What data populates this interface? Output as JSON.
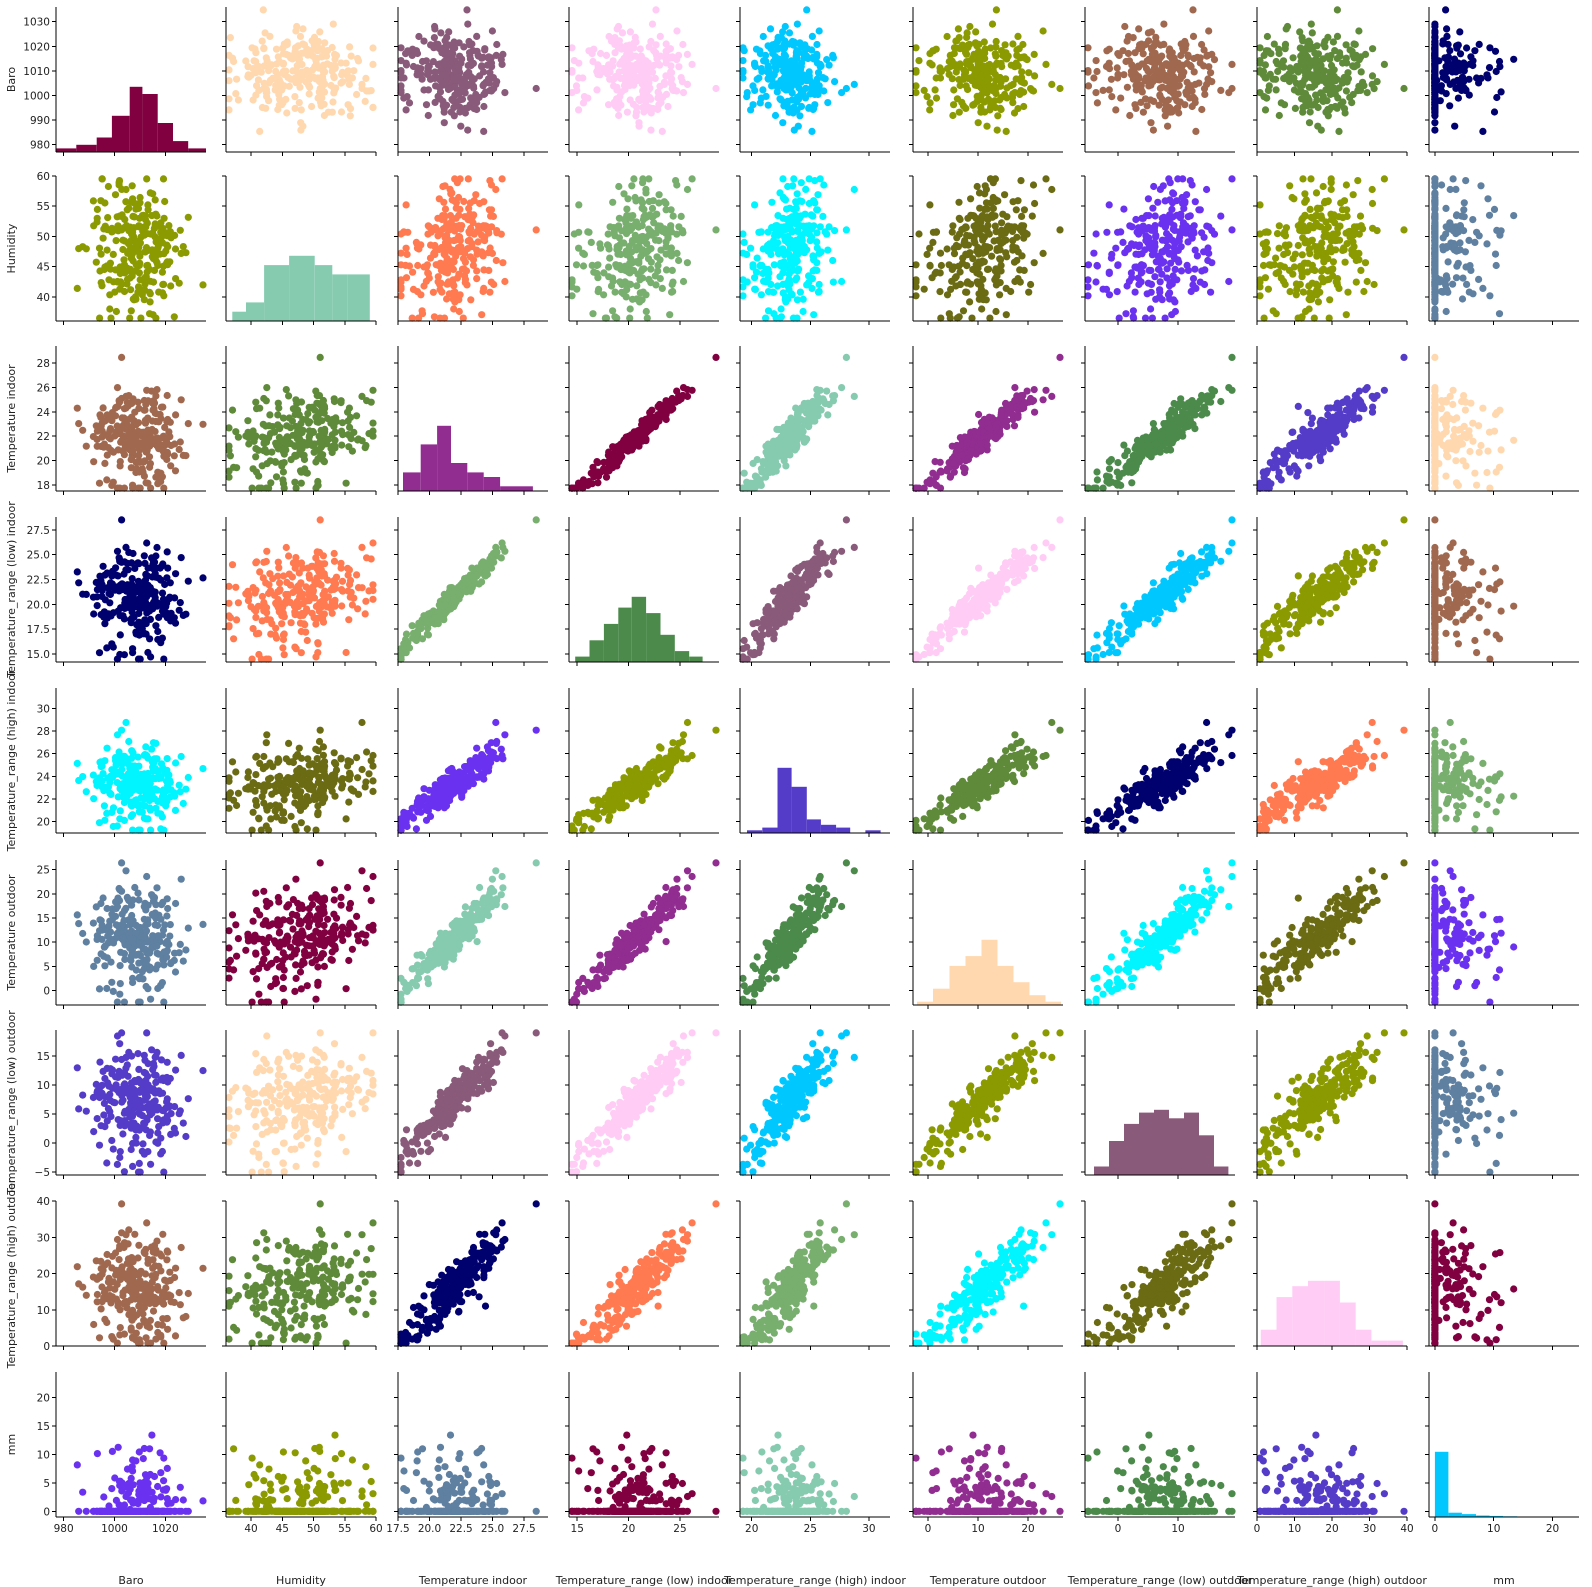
{
  "chart_data": {
    "type": "scatter",
    "title": "",
    "layout": "pairplot",
    "variables": [
      {
        "name": "Baro",
        "label": "Baro",
        "range": [
          977,
          1036
        ],
        "ticks": [
          980,
          1000,
          1020
        ],
        "ticks_y": [
          980,
          990,
          1000,
          1010,
          1020,
          1030
        ],
        "tick_labels_x": [
          "980",
          "1000",
          "1020"
        ],
        "tick_labels_y": [
          "980",
          "990",
          "1000",
          "1010",
          "1020",
          "1030"
        ]
      },
      {
        "name": "Humidity",
        "label": "Humidity",
        "range": [
          36,
          60
        ],
        "ticks": [
          40,
          45,
          50,
          55,
          60
        ],
        "ticks_y": [
          40,
          45,
          50,
          55,
          60
        ],
        "tick_labels_x": [
          "40",
          "45",
          "50",
          "55",
          "60"
        ],
        "tick_labels_y": [
          "40",
          "45",
          "50",
          "55",
          "60"
        ]
      },
      {
        "name": "Temperature indoor",
        "label": "Temperature indoor",
        "range": [
          17.5,
          29.4
        ],
        "ticks": [
          17.5,
          20,
          22.5,
          25,
          27.5
        ],
        "ticks_y": [
          18,
          20,
          22,
          24,
          26,
          28
        ],
        "tick_labels_x": [
          "17.5",
          "20.0",
          "22.5",
          "25.0",
          "27.5"
        ],
        "tick_labels_y": [
          "18",
          "20",
          "22",
          "24",
          "26",
          "28"
        ]
      },
      {
        "name": "Temperature_range (low) indoor",
        "label": "Temperature_range (low) indoor",
        "range": [
          14.2,
          28.8
        ],
        "ticks": [
          15,
          20,
          25
        ],
        "ticks_y": [
          15,
          17.5,
          20,
          22.5,
          25,
          27.5
        ],
        "tick_labels_x": [
          "15",
          "20",
          "25"
        ],
        "tick_labels_y": [
          "15.0",
          "17.5",
          "20.0",
          "22.5",
          "25.0",
          "27.5"
        ]
      },
      {
        "name": "Temperature_range (high) indoor",
        "label": "Temperature_range (high) indoor",
        "range": [
          19,
          31.8
        ],
        "ticks": [
          20,
          25,
          30
        ],
        "ticks_y": [
          20,
          22,
          24,
          26,
          28,
          30
        ],
        "tick_labels_x": [
          "20",
          "25",
          "30"
        ],
        "tick_labels_y": [
          "20",
          "22",
          "24",
          "26",
          "28",
          "30"
        ]
      },
      {
        "name": "Temperature outdoor",
        "label": "Temperature outdoor",
        "range": [
          -3,
          27
        ],
        "ticks": [
          0,
          10,
          20
        ],
        "ticks_y": [
          0,
          5,
          10,
          15,
          20,
          25
        ],
        "tick_labels_x": [
          "0",
          "10",
          "20"
        ],
        "tick_labels_y": [
          "0",
          "5",
          "10",
          "15",
          "20",
          "25"
        ]
      },
      {
        "name": "Temperature_range (low) outdoor",
        "label": "Temperature_range (low) outdoor",
        "range": [
          -5.5,
          19.5
        ],
        "ticks": [
          0,
          10
        ],
        "ticks_y": [
          -5,
          0,
          5,
          10,
          15
        ],
        "tick_labels_x": [
          "0",
          "10"
        ],
        "tick_labels_y": [
          "−5",
          "0",
          "5",
          "10",
          "15"
        ]
      },
      {
        "name": "Temperature_range (high) outdoor",
        "label": "Temperature_range (high) outdoor",
        "range": [
          0,
          40
        ],
        "ticks": [
          0,
          10,
          20,
          30,
          40
        ],
        "ticks_y": [
          0,
          10,
          20,
          30,
          40
        ],
        "tick_labels_x": [
          "0",
          "10",
          "20",
          "30",
          "40"
        ],
        "tick_labels_y": [
          "0",
          "10",
          "20",
          "30",
          "40"
        ]
      },
      {
        "name": "mm",
        "label": "mm",
        "range": [
          -1,
          24.5
        ],
        "ticks": [
          0,
          10,
          20
        ],
        "ticks_y": [
          0,
          5,
          10,
          15,
          20
        ],
        "tick_labels_x": [
          "0",
          "10",
          "20"
        ],
        "tick_labels_y": [
          "0",
          "5",
          "10",
          "15",
          "20"
        ]
      }
    ],
    "diagonal": "histogram",
    "panel_colors": [
      [
        "#800040",
        "#ffd8b0",
        "#8a5a7a",
        "#ffccf5",
        "#00c8ff",
        "#8a9a00",
        "#a0694f",
        "#5f8a3a",
        "#00006e"
      ],
      [
        "#8a9a00",
        "#86cbb0",
        "#ff7a50",
        "#78ae6e",
        "#00f5ff",
        "#6b6b14",
        "#6a32f0",
        "#8a9a00",
        "#5f80a0"
      ],
      [
        "#a0694f",
        "#5f8a3a",
        "#912c91",
        "#800040",
        "#86cbb0",
        "#912c91",
        "#4b8a4b",
        "#553cc8",
        "#ffd8b0"
      ],
      [
        "#00006e",
        "#ff7a50",
        "#78ae6e",
        "#4b8a4b",
        "#8a5a7a",
        "#ffccf5",
        "#00c8ff",
        "#8a9a00",
        "#a0694f"
      ],
      [
        "#00f5ff",
        "#6b6b14",
        "#6a32f0",
        "#8a9a00",
        "#553cc8",
        "#5f8a3a",
        "#00006e",
        "#ff7a50",
        "#78ae6e"
      ],
      [
        "#5f80a0",
        "#800040",
        "#86cbb0",
        "#912c91",
        "#4b8a4b",
        "#ffd8b0",
        "#00f5ff",
        "#6b6b14",
        "#6a32f0"
      ],
      [
        "#553cc8",
        "#ffd8b0",
        "#8a5a7a",
        "#ffccf5",
        "#00c8ff",
        "#8a9a00",
        "#8a5a7a",
        "#8a9a00",
        "#5f80a0"
      ],
      [
        "#a0694f",
        "#5f8a3a",
        "#00006e",
        "#ff7a50",
        "#78ae6e",
        "#00f5ff",
        "#6b6b14",
        "#ffccf5",
        "#800040"
      ],
      [
        "#6a32f0",
        "#8a9a00",
        "#5f80a0",
        "#800040",
        "#86cbb0",
        "#912c91",
        "#4b8a4b",
        "#553cc8",
        "#00c8ff"
      ]
    ],
    "histograms": [
      {
        "variable": "Baro",
        "bins": [
          977,
          985,
          993,
          999,
          1006,
          1011,
          1017,
          1023,
          1029,
          1036
        ],
        "counts": [
          1,
          2,
          4,
          10,
          18,
          16,
          8,
          3,
          1
        ]
      },
      {
        "variable": "Humidity",
        "bins": [
          37,
          39.2,
          42.1,
          46.1,
          50.2,
          53,
          55.4,
          59
        ],
        "counts": [
          1,
          2,
          6,
          7,
          6,
          5,
          5
        ]
      },
      {
        "variable": "Temperature indoor",
        "bins": [
          17.9,
          19.3,
          20.6,
          21.7,
          23,
          24.3,
          25.6,
          26.9,
          28.2,
          29.3
        ],
        "counts": [
          4,
          10,
          14,
          6,
          4,
          3,
          1,
          1,
          0
        ]
      },
      {
        "variable": "Temperature_range (low) indoor",
        "bins": [
          14.8,
          16.2,
          17.6,
          19,
          20.3,
          21.7,
          23.1,
          24.5,
          25.9,
          27.2,
          28.5
        ],
        "counts": [
          1,
          4,
          7,
          10,
          12,
          9,
          5,
          2,
          1,
          0
        ]
      },
      {
        "variable": "Temperature_range (high) indoor",
        "bins": [
          19.6,
          20.9,
          22.2,
          23.4,
          24.7,
          25.9,
          27.2,
          28.4,
          29.7,
          31
        ],
        "counts": [
          1,
          2,
          24,
          17,
          5,
          3,
          2,
          0,
          1
        ]
      },
      {
        "variable": "Temperature outdoor",
        "bins": [
          -2.2,
          1,
          4.3,
          7.5,
          10.7,
          13.9,
          17.1,
          20.3,
          23.5,
          26.6
        ],
        "counts": [
          1,
          5,
          12,
          15,
          20,
          12,
          7,
          3,
          1
        ]
      },
      {
        "variable": "Temperature_range (low) outdoor",
        "bins": [
          -4,
          -1.5,
          1,
          3.5,
          6,
          8.5,
          11,
          13.5,
          16,
          18.4
        ],
        "counts": [
          3,
          12,
          18,
          22,
          23,
          20,
          22,
          14,
          3
        ]
      },
      {
        "variable": "Temperature_range (high) outdoor",
        "bins": [
          1,
          5.2,
          9.4,
          13.6,
          17.9,
          22.1,
          26.3,
          30.5,
          34.7,
          38.9
        ],
        "counts": [
          3,
          9,
          11,
          12,
          12,
          8,
          3,
          1,
          1
        ]
      },
      {
        "variable": "mm",
        "bins": [
          0,
          2.3,
          4.6,
          7,
          9.3,
          11.6,
          14,
          16.3,
          18.6,
          21,
          23.3
        ],
        "counts": [
          180,
          12,
          8,
          4,
          3,
          2,
          1,
          1,
          1,
          1
        ]
      }
    ],
    "x_labels": [
      "Baro",
      "Humidity",
      "Temperature indoor",
      "Temperature_range (low) indoor",
      "Temperature_range (high) indoor",
      "Temperature outdoor",
      "Temperature_range (low) outdoor",
      "Temperature_range (high) outdoor",
      "mm"
    ],
    "y_labels": [
      "Baro",
      "Humidity",
      "Temperature indoor",
      "Temperature_range (low) indoor",
      "Temperature_range (high) indoor",
      "Temperature outdoor",
      "Temperature_range (low) outdoor",
      "Temperature_range (high) outdoor",
      "mm"
    ],
    "grid": false,
    "legend": "none"
  }
}
